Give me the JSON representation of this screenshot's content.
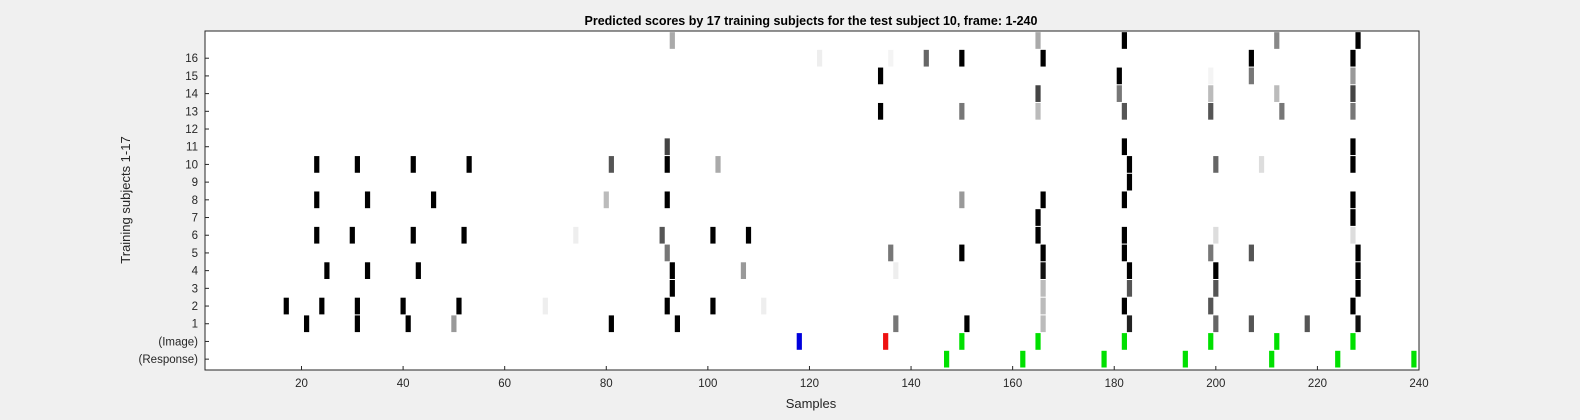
{
  "chart_data": {
    "type": "heatmap",
    "title": "Predicted scores by 17 training subjects for the test subject 10, frame: 1-240",
    "xlabel": "Samples",
    "ylabel": "Training subjects 1-17",
    "xlim": [
      1,
      240
    ],
    "x_ticks": [
      20,
      40,
      60,
      80,
      100,
      120,
      140,
      160,
      180,
      200,
      220,
      240
    ],
    "rows": [
      {
        "label": "(Response)",
        "marks": [
          {
            "x": 147,
            "c": "#00e000"
          },
          {
            "x": 162,
            "c": "#00e000"
          },
          {
            "x": 178,
            "c": "#00e000"
          },
          {
            "x": 194,
            "c": "#00e000"
          },
          {
            "x": 211,
            "c": "#00e000"
          },
          {
            "x": 224,
            "c": "#00e000"
          },
          {
            "x": 239,
            "c": "#00e000"
          }
        ]
      },
      {
        "label": "(Image)",
        "marks": [
          {
            "x": 118,
            "c": "#0000dd"
          },
          {
            "x": 135,
            "c": "#ee1111"
          },
          {
            "x": 150,
            "c": "#00e000"
          },
          {
            "x": 165,
            "c": "#00e000"
          },
          {
            "x": 182,
            "c": "#00e000"
          },
          {
            "x": 199,
            "c": "#00e000"
          },
          {
            "x": 212,
            "c": "#00e000"
          },
          {
            "x": 227,
            "c": "#00e000"
          }
        ]
      },
      {
        "label": "1",
        "marks": [
          {
            "x": 21,
            "c": "#000000"
          },
          {
            "x": 31,
            "c": "#000000"
          },
          {
            "x": 41,
            "c": "#000000"
          },
          {
            "x": 50,
            "c": "#999999"
          },
          {
            "x": 81,
            "c": "#000000"
          },
          {
            "x": 94,
            "c": "#000000"
          },
          {
            "x": 137,
            "c": "#777777"
          },
          {
            "x": 151,
            "c": "#000000"
          },
          {
            "x": 166,
            "c": "#bbbbbb"
          },
          {
            "x": 183,
            "c": "#222222"
          },
          {
            "x": 200,
            "c": "#666666"
          },
          {
            "x": 207,
            "c": "#555555"
          },
          {
            "x": 218,
            "c": "#555555"
          },
          {
            "x": 228,
            "c": "#111111"
          }
        ]
      },
      {
        "label": "2",
        "marks": [
          {
            "x": 17,
            "c": "#000000"
          },
          {
            "x": 24,
            "c": "#000000"
          },
          {
            "x": 31,
            "c": "#000000"
          },
          {
            "x": 40,
            "c": "#000000"
          },
          {
            "x": 51,
            "c": "#000000"
          },
          {
            "x": 68,
            "c": "#eeeeee"
          },
          {
            "x": 92,
            "c": "#000000"
          },
          {
            "x": 101,
            "c": "#000000"
          },
          {
            "x": 111,
            "c": "#eeeeee"
          },
          {
            "x": 166,
            "c": "#bbbbbb"
          },
          {
            "x": 182,
            "c": "#000000"
          },
          {
            "x": 199,
            "c": "#555555"
          },
          {
            "x": 227,
            "c": "#000000"
          }
        ]
      },
      {
        "label": "3",
        "marks": [
          {
            "x": 93,
            "c": "#000000"
          },
          {
            "x": 166,
            "c": "#bbbbbb"
          },
          {
            "x": 183,
            "c": "#555555"
          },
          {
            "x": 200,
            "c": "#555555"
          },
          {
            "x": 228,
            "c": "#000000"
          }
        ]
      },
      {
        "label": "4",
        "marks": [
          {
            "x": 25,
            "c": "#000000"
          },
          {
            "x": 33,
            "c": "#000000"
          },
          {
            "x": 43,
            "c": "#000000"
          },
          {
            "x": 93,
            "c": "#000000"
          },
          {
            "x": 107,
            "c": "#999999"
          },
          {
            "x": 137,
            "c": "#eeeeee"
          },
          {
            "x": 166,
            "c": "#111111"
          },
          {
            "x": 183,
            "c": "#000000"
          },
          {
            "x": 200,
            "c": "#000000"
          },
          {
            "x": 228,
            "c": "#000000"
          }
        ]
      },
      {
        "label": "5",
        "marks": [
          {
            "x": 92,
            "c": "#777777"
          },
          {
            "x": 136,
            "c": "#777777"
          },
          {
            "x": 150,
            "c": "#000000"
          },
          {
            "x": 166,
            "c": "#000000"
          },
          {
            "x": 182,
            "c": "#000000"
          },
          {
            "x": 199,
            "c": "#777777"
          },
          {
            "x": 207,
            "c": "#555555"
          },
          {
            "x": 228,
            "c": "#000000"
          }
        ]
      },
      {
        "label": "6",
        "marks": [
          {
            "x": 23,
            "c": "#000000"
          },
          {
            "x": 30,
            "c": "#000000"
          },
          {
            "x": 42,
            "c": "#000000"
          },
          {
            "x": 52,
            "c": "#000000"
          },
          {
            "x": 74,
            "c": "#eeeeee"
          },
          {
            "x": 91,
            "c": "#555555"
          },
          {
            "x": 101,
            "c": "#000000"
          },
          {
            "x": 108,
            "c": "#000000"
          },
          {
            "x": 165,
            "c": "#000000"
          },
          {
            "x": 182,
            "c": "#000000"
          },
          {
            "x": 200,
            "c": "#dddddd"
          },
          {
            "x": 227,
            "c": "#dddddd"
          }
        ]
      },
      {
        "label": "7",
        "marks": [
          {
            "x": 165,
            "c": "#000000"
          },
          {
            "x": 227,
            "c": "#000000"
          }
        ]
      },
      {
        "label": "8",
        "marks": [
          {
            "x": 23,
            "c": "#000000"
          },
          {
            "x": 33,
            "c": "#000000"
          },
          {
            "x": 46,
            "c": "#000000"
          },
          {
            "x": 80,
            "c": "#bbbbbb"
          },
          {
            "x": 92,
            "c": "#000000"
          },
          {
            "x": 150,
            "c": "#999999"
          },
          {
            "x": 166,
            "c": "#000000"
          },
          {
            "x": 182,
            "c": "#000000"
          },
          {
            "x": 227,
            "c": "#000000"
          }
        ]
      },
      {
        "label": "9",
        "marks": [
          {
            "x": 183,
            "c": "#000000"
          }
        ]
      },
      {
        "label": "10",
        "marks": [
          {
            "x": 23,
            "c": "#000000"
          },
          {
            "x": 31,
            "c": "#000000"
          },
          {
            "x": 42,
            "c": "#000000"
          },
          {
            "x": 53,
            "c": "#000000"
          },
          {
            "x": 81,
            "c": "#555555"
          },
          {
            "x": 92,
            "c": "#000000"
          },
          {
            "x": 102,
            "c": "#aaaaaa"
          },
          {
            "x": 183,
            "c": "#000000"
          },
          {
            "x": 200,
            "c": "#666666"
          },
          {
            "x": 209,
            "c": "#dddddd"
          },
          {
            "x": 227,
            "c": "#000000"
          }
        ]
      },
      {
        "label": "11",
        "marks": [
          {
            "x": 92,
            "c": "#444444"
          },
          {
            "x": 182,
            "c": "#000000"
          },
          {
            "x": 227,
            "c": "#000000"
          }
        ]
      },
      {
        "label": "12",
        "marks": []
      },
      {
        "label": "13",
        "marks": [
          {
            "x": 134,
            "c": "#000000"
          },
          {
            "x": 150,
            "c": "#777777"
          },
          {
            "x": 165,
            "c": "#bbbbbb"
          },
          {
            "x": 182,
            "c": "#555555"
          },
          {
            "x": 199,
            "c": "#555555"
          },
          {
            "x": 213,
            "c": "#777777"
          },
          {
            "x": 227,
            "c": "#777777"
          }
        ]
      },
      {
        "label": "14",
        "marks": [
          {
            "x": 165,
            "c": "#444444"
          },
          {
            "x": 181,
            "c": "#777777"
          },
          {
            "x": 199,
            "c": "#bbbbbb"
          },
          {
            "x": 212,
            "c": "#bbbbbb"
          },
          {
            "x": 227,
            "c": "#444444"
          }
        ]
      },
      {
        "label": "15",
        "marks": [
          {
            "x": 134,
            "c": "#000000"
          },
          {
            "x": 181,
            "c": "#000000"
          },
          {
            "x": 199,
            "c": "#f4f4f4"
          },
          {
            "x": 207,
            "c": "#777777"
          },
          {
            "x": 227,
            "c": "#999999"
          }
        ]
      },
      {
        "label": "16",
        "marks": [
          {
            "x": 122,
            "c": "#eeeeee"
          },
          {
            "x": 136,
            "c": "#f4f4f4"
          },
          {
            "x": 143,
            "c": "#666666"
          },
          {
            "x": 150,
            "c": "#000000"
          },
          {
            "x": 166,
            "c": "#000000"
          },
          {
            "x": 207,
            "c": "#000000"
          },
          {
            "x": 227,
            "c": "#000000"
          }
        ]
      },
      {
        "label": "",
        "marks": [
          {
            "x": 93,
            "c": "#aaaaaa"
          },
          {
            "x": 165,
            "c": "#aaaaaa"
          },
          {
            "x": 182,
            "c": "#000000"
          },
          {
            "x": 212,
            "c": "#888888"
          },
          {
            "x": 228,
            "c": "#000000"
          }
        ]
      }
    ]
  }
}
